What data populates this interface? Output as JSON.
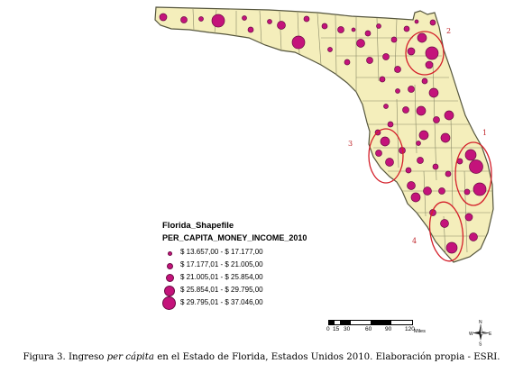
{
  "legend": {
    "title": "Florida_Shapefile",
    "field": "PER_CAPITA_MONEY_INCOME_2010",
    "classes": [
      {
        "label": "$ 13.657,00 - $ 17.177,00",
        "size": 1
      },
      {
        "label": "$ 17.177,01 - $ 21.005,00",
        "size": 2
      },
      {
        "label": "$ 21.005,01 - $ 25.854,00",
        "size": 3
      },
      {
        "label": "$ 25.854,01 - $ 29.795,00",
        "size": 4
      },
      {
        "label": "$ 29.795,01 - $ 37.046,00",
        "size": 5
      }
    ]
  },
  "highlights": [
    {
      "label": "1"
    },
    {
      "label": "2"
    },
    {
      "label": "3"
    },
    {
      "label": "4"
    }
  ],
  "scale_bar": {
    "ticks": [
      "0",
      "15",
      "30",
      "60",
      "90",
      "120"
    ],
    "unit": "Miles"
  },
  "compass": {
    "n": "N",
    "s": "S",
    "e": "E",
    "w": "W"
  },
  "caption": {
    "part1": "Figura 3. Ingreso ",
    "italic": "per cápita",
    "part2": " en el Estado de Florida, Estados Unidos 2010. Elaboración propia - ESRI."
  },
  "colors": {
    "land": "#f4eebb",
    "county_border": "#6b6b4a",
    "symbol": "#c4137b",
    "symbol_outline": "#6b0b44",
    "highlight_ring": "#d41f2a"
  }
}
